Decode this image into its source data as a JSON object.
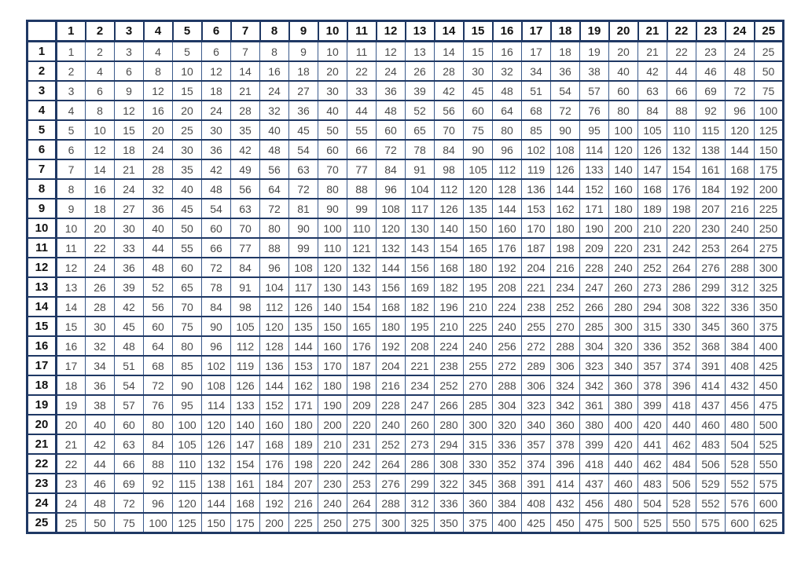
{
  "table": {
    "corner_label": "",
    "col_headers": [
      "1",
      "2",
      "3",
      "4",
      "5",
      "6",
      "7",
      "8",
      "9",
      "10",
      "11",
      "12",
      "13",
      "14",
      "15",
      "16",
      "17",
      "18",
      "19",
      "20",
      "21",
      "22",
      "23",
      "24",
      "25"
    ],
    "rows": [
      {
        "header": "1",
        "values": [
          1,
          2,
          3,
          4,
          5,
          6,
          7,
          8,
          9,
          10,
          11,
          12,
          13,
          14,
          15,
          16,
          17,
          18,
          19,
          20,
          21,
          22,
          23,
          24,
          25
        ]
      },
      {
        "header": "2",
        "values": [
          2,
          4,
          6,
          8,
          10,
          12,
          14,
          16,
          18,
          20,
          22,
          24,
          26,
          28,
          30,
          32,
          34,
          36,
          38,
          40,
          42,
          44,
          46,
          48,
          50
        ]
      },
      {
        "header": "3",
        "values": [
          3,
          6,
          9,
          12,
          15,
          18,
          21,
          24,
          27,
          30,
          33,
          36,
          39,
          42,
          45,
          48,
          51,
          54,
          57,
          60,
          63,
          66,
          69,
          72,
          75
        ]
      },
      {
        "header": "4",
        "values": [
          4,
          8,
          12,
          16,
          20,
          24,
          28,
          32,
          36,
          40,
          44,
          48,
          52,
          56,
          60,
          64,
          68,
          72,
          76,
          80,
          84,
          88,
          92,
          96,
          100
        ]
      },
      {
        "header": "5",
        "values": [
          5,
          10,
          15,
          20,
          25,
          30,
          35,
          40,
          45,
          50,
          55,
          60,
          65,
          70,
          75,
          80,
          85,
          90,
          95,
          100,
          105,
          110,
          115,
          120,
          125
        ]
      },
      {
        "header": "6",
        "values": [
          6,
          12,
          18,
          24,
          30,
          36,
          42,
          48,
          54,
          60,
          66,
          72,
          78,
          84,
          90,
          96,
          102,
          108,
          114,
          120,
          126,
          132,
          138,
          144,
          150
        ]
      },
      {
        "header": "7",
        "values": [
          7,
          14,
          21,
          28,
          35,
          42,
          49,
          56,
          63,
          70,
          77,
          84,
          91,
          98,
          105,
          112,
          119,
          126,
          133,
          140,
          147,
          154,
          161,
          168,
          175
        ]
      },
      {
        "header": "8",
        "values": [
          8,
          16,
          24,
          32,
          40,
          48,
          56,
          64,
          72,
          80,
          88,
          96,
          104,
          112,
          120,
          128,
          136,
          144,
          152,
          160,
          168,
          176,
          184,
          192,
          200
        ]
      },
      {
        "header": "9",
        "values": [
          9,
          18,
          27,
          36,
          45,
          54,
          63,
          72,
          81,
          90,
          99,
          108,
          117,
          126,
          135,
          144,
          153,
          162,
          171,
          180,
          189,
          198,
          207,
          216,
          225
        ]
      },
      {
        "header": "10",
        "values": [
          10,
          20,
          30,
          40,
          50,
          60,
          70,
          80,
          90,
          100,
          110,
          120,
          130,
          140,
          150,
          160,
          170,
          180,
          190,
          200,
          210,
          220,
          230,
          240,
          250
        ]
      },
      {
        "header": "11",
        "values": [
          11,
          22,
          33,
          44,
          55,
          66,
          77,
          88,
          99,
          110,
          121,
          132,
          143,
          154,
          165,
          176,
          187,
          198,
          209,
          220,
          231,
          242,
          253,
          264,
          275
        ]
      },
      {
        "header": "12",
        "values": [
          12,
          24,
          36,
          48,
          60,
          72,
          84,
          96,
          108,
          120,
          132,
          144,
          156,
          168,
          180,
          192,
          204,
          216,
          228,
          240,
          252,
          264,
          276,
          288,
          300
        ]
      },
      {
        "header": "13",
        "values": [
          13,
          26,
          39,
          52,
          65,
          78,
          91,
          104,
          117,
          130,
          143,
          156,
          169,
          182,
          195,
          208,
          221,
          234,
          247,
          260,
          273,
          286,
          299,
          312,
          325
        ]
      },
      {
        "header": "14",
        "values": [
          14,
          28,
          42,
          56,
          70,
          84,
          98,
          112,
          126,
          140,
          154,
          168,
          182,
          196,
          210,
          224,
          238,
          252,
          266,
          280,
          294,
          308,
          322,
          336,
          350
        ]
      },
      {
        "header": "15",
        "values": [
          15,
          30,
          45,
          60,
          75,
          90,
          105,
          120,
          135,
          150,
          165,
          180,
          195,
          210,
          225,
          240,
          255,
          270,
          285,
          300,
          315,
          330,
          345,
          360,
          375
        ]
      },
      {
        "header": "16",
        "values": [
          16,
          32,
          48,
          64,
          80,
          96,
          112,
          128,
          144,
          160,
          176,
          192,
          208,
          224,
          240,
          256,
          272,
          288,
          304,
          320,
          336,
          352,
          368,
          384,
          400
        ]
      },
      {
        "header": "17",
        "values": [
          17,
          34,
          51,
          68,
          85,
          102,
          119,
          136,
          153,
          170,
          187,
          204,
          221,
          238,
          255,
          272,
          289,
          306,
          323,
          340,
          357,
          374,
          391,
          408,
          425
        ]
      },
      {
        "header": "18",
        "values": [
          18,
          36,
          54,
          72,
          90,
          108,
          126,
          144,
          162,
          180,
          198,
          216,
          234,
          252,
          270,
          288,
          306,
          324,
          342,
          360,
          378,
          396,
          414,
          432,
          450
        ]
      },
      {
        "header": "19",
        "values": [
          19,
          38,
          57,
          76,
          95,
          114,
          133,
          152,
          171,
          190,
          209,
          228,
          247,
          266,
          285,
          304,
          323,
          342,
          361,
          380,
          399,
          418,
          437,
          456,
          475
        ]
      },
      {
        "header": "20",
        "values": [
          20,
          40,
          60,
          80,
          100,
          120,
          140,
          160,
          180,
          200,
          220,
          240,
          260,
          280,
          300,
          320,
          340,
          360,
          380,
          400,
          420,
          440,
          460,
          480,
          500
        ]
      },
      {
        "header": "21",
        "values": [
          21,
          42,
          63,
          84,
          105,
          126,
          147,
          168,
          189,
          210,
          231,
          252,
          273,
          294,
          315,
          336,
          357,
          378,
          399,
          420,
          441,
          462,
          483,
          504,
          525
        ]
      },
      {
        "header": "22",
        "values": [
          22,
          44,
          66,
          88,
          110,
          132,
          154,
          176,
          198,
          220,
          242,
          264,
          286,
          308,
          330,
          352,
          374,
          396,
          418,
          440,
          462,
          484,
          506,
          528,
          550
        ]
      },
      {
        "header": "23",
        "values": [
          23,
          46,
          69,
          92,
          115,
          138,
          161,
          184,
          207,
          230,
          253,
          276,
          299,
          322,
          345,
          368,
          391,
          414,
          437,
          460,
          483,
          506,
          529,
          552,
          575
        ]
      },
      {
        "header": "24",
        "values": [
          24,
          48,
          72,
          96,
          120,
          144,
          168,
          192,
          216,
          240,
          264,
          288,
          312,
          336,
          360,
          384,
          408,
          432,
          456,
          480,
          504,
          528,
          552,
          576,
          600
        ]
      },
      {
        "header": "25",
        "values": [
          25,
          50,
          75,
          100,
          125,
          150,
          175,
          200,
          225,
          250,
          275,
          300,
          325,
          350,
          375,
          400,
          425,
          450,
          475,
          500,
          525,
          550,
          575,
          600,
          625
        ]
      }
    ],
    "colors": {
      "border_dark": "#1f3864",
      "border_light": "#3a5a8c",
      "header_text": "#111111",
      "cell_text": "#4a4a4a",
      "background": "#ffffff"
    }
  }
}
